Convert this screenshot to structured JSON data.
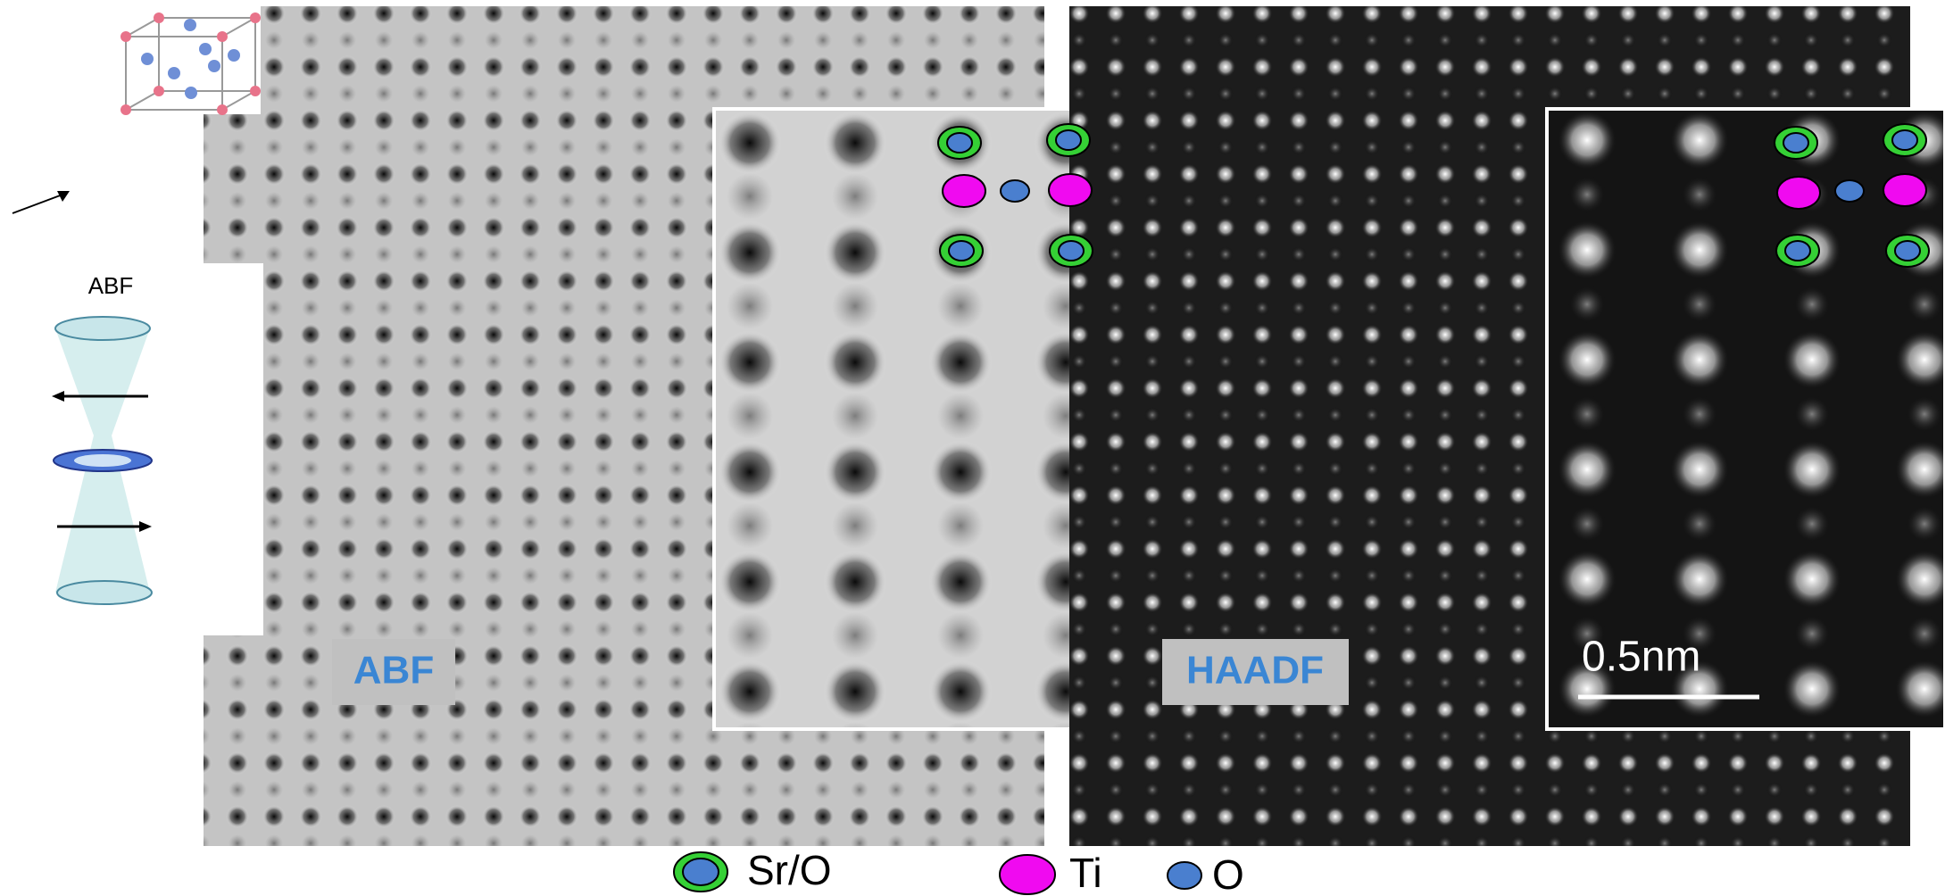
{
  "crystal_schematic": {
    "label": "ABF"
  },
  "panels": [
    {
      "label": "ABF"
    },
    {
      "label": "HAADF",
      "scale_bar": "0.5nm"
    }
  ],
  "legend": [
    {
      "label": "Sr/O"
    },
    {
      "label": "Ti"
    },
    {
      "label": "O"
    }
  ]
}
